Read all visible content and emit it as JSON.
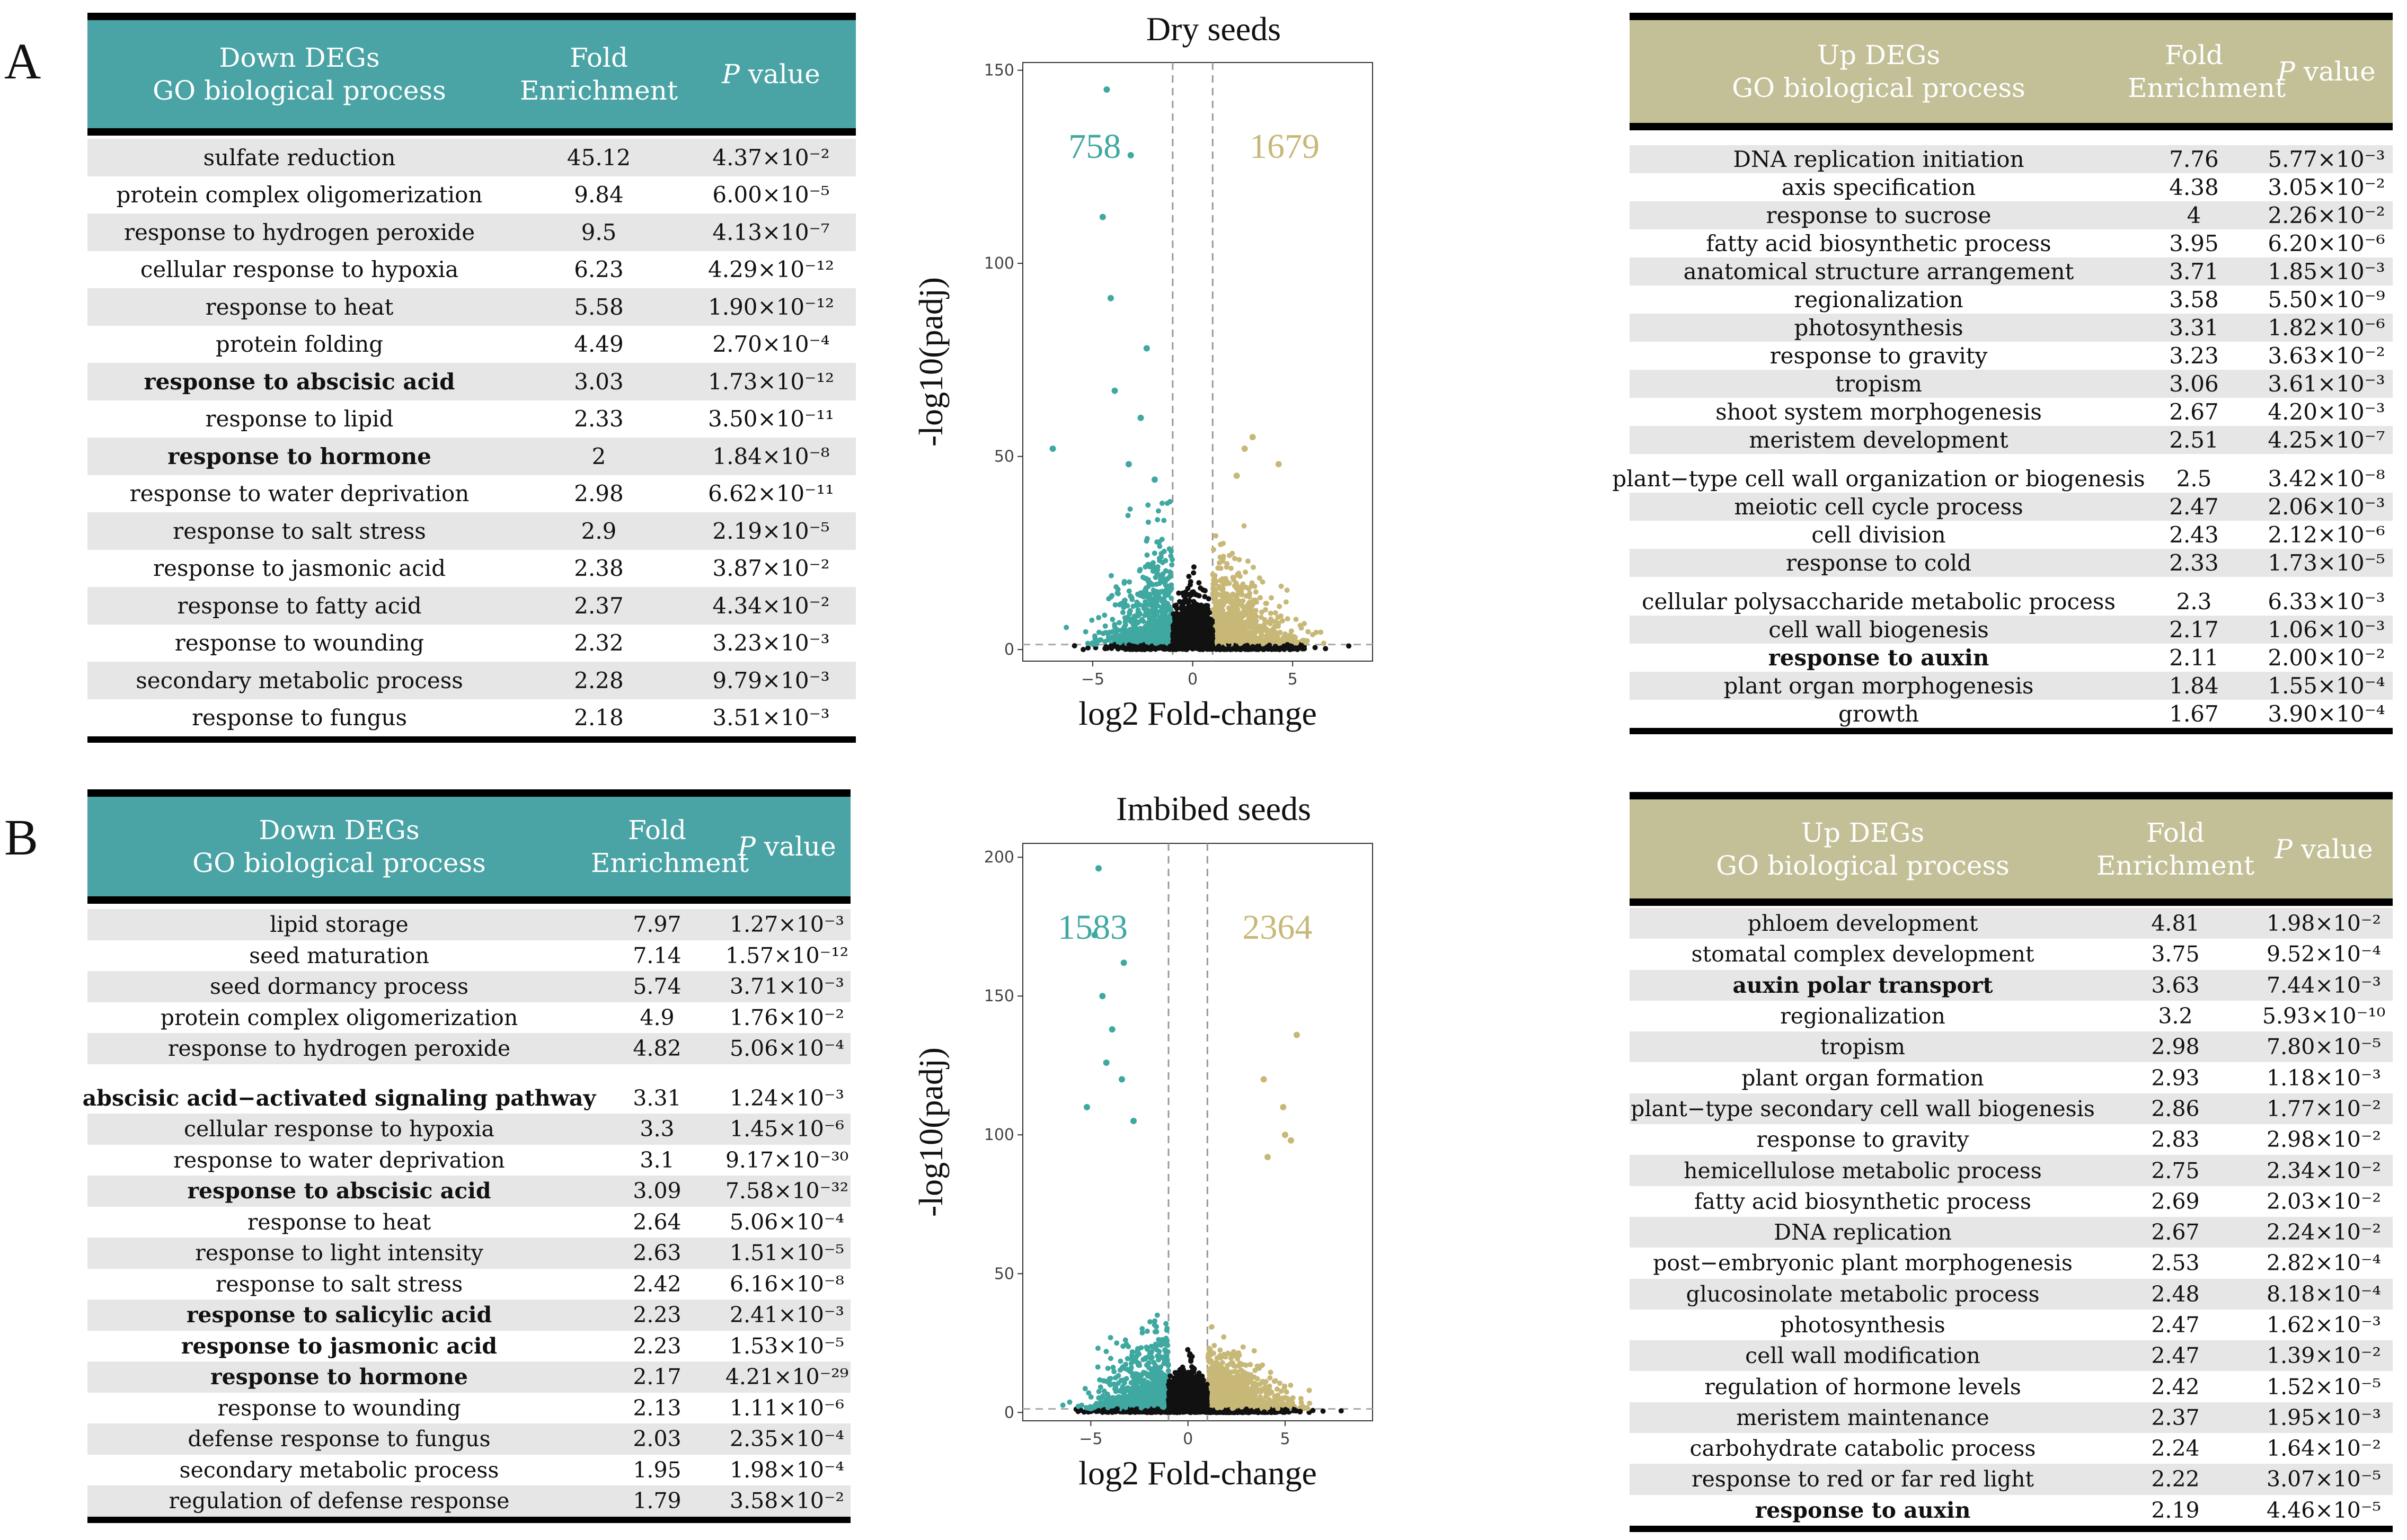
{
  "panels": {
    "A": {
      "letter": "A",
      "down": {
        "header": {
          "l1": "Down DEGs",
          "l2": "GO biological process",
          "fold1": "Fold",
          "fold2": "Enrichment",
          "p": "P",
          "pv": "value"
        },
        "rows": [
          {
            "term": "sulfate reduction",
            "fold": "45.12",
            "p": "4.37×10⁻²",
            "bold": false
          },
          {
            "term": "protein complex oligomerization",
            "fold": "9.84",
            "p": "6.00×10⁻⁵",
            "bold": false
          },
          {
            "term": "response to hydrogen peroxide",
            "fold": "9.5",
            "p": "4.13×10⁻⁷",
            "bold": false
          },
          {
            "term": "cellular response to hypoxia",
            "fold": "6.23",
            "p": "4.29×10⁻¹²",
            "bold": false
          },
          {
            "term": "response to heat",
            "fold": "5.58",
            "p": "1.90×10⁻¹²",
            "bold": false
          },
          {
            "term": "protein folding",
            "fold": "4.49",
            "p": "2.70×10⁻⁴",
            "bold": false
          },
          {
            "term": "response to abscisic acid",
            "fold": "3.03",
            "p": "1.73×10⁻¹²",
            "bold": true
          },
          {
            "term": "response to lipid",
            "fold": "2.33",
            "p": "3.50×10⁻¹¹",
            "bold": false
          },
          {
            "term": "response to hormone",
            "fold": "2",
            "p": "1.84×10⁻⁸",
            "bold": true
          },
          {
            "term": "response to water deprivation",
            "fold": "2.98",
            "p": "6.62×10⁻¹¹",
            "bold": false
          },
          {
            "term": "response to salt stress",
            "fold": "2.9",
            "p": "2.19×10⁻⁵",
            "bold": false
          },
          {
            "term": "response to jasmonic acid",
            "fold": "2.38",
            "p": "3.87×10⁻²",
            "bold": false
          },
          {
            "term": "response to fatty acid",
            "fold": "2.37",
            "p": "4.34×10⁻²",
            "bold": false
          },
          {
            "term": "response to wounding",
            "fold": "2.32",
            "p": "3.23×10⁻³",
            "bold": false
          },
          {
            "term": "secondary metabolic process",
            "fold": "2.28",
            "p": "9.79×10⁻³",
            "bold": false
          },
          {
            "term": "response to fungus",
            "fold": "2.18",
            "p": "3.51×10⁻³",
            "bold": false
          }
        ]
      },
      "up": {
        "header": {
          "l1": "Up DEGs",
          "l2": "GO biological process",
          "fold1": "Fold",
          "fold2": "Enrichment",
          "p": "P",
          "pv": "value"
        },
        "rows": [
          {
            "term": "DNA replication initiation",
            "fold": "7.76",
            "p": "5.77×10⁻³",
            "bold": false
          },
          {
            "term": "axis specification",
            "fold": "4.38",
            "p": "3.05×10⁻²",
            "bold": false
          },
          {
            "term": "response to sucrose",
            "fold": "4",
            "p": "2.26×10⁻²",
            "bold": false
          },
          {
            "term": "fatty acid biosynthetic process",
            "fold": "3.95",
            "p": "6.20×10⁻⁶",
            "bold": false
          },
          {
            "term": "anatomical structure arrangement",
            "fold": "3.71",
            "p": "1.85×10⁻³",
            "bold": false
          },
          {
            "term": "regionalization",
            "fold": "3.58",
            "p": "5.50×10⁻⁹",
            "bold": false
          },
          {
            "term": "photosynthesis",
            "fold": "3.31",
            "p": "1.82×10⁻⁶",
            "bold": false
          },
          {
            "term": "response to gravity",
            "fold": "3.23",
            "p": "3.63×10⁻²",
            "bold": false
          },
          {
            "term": "tropism",
            "fold": "3.06",
            "p": "3.61×10⁻³",
            "bold": false
          },
          {
            "term": "shoot system morphogenesis",
            "fold": "2.67",
            "p": "4.20×10⁻³",
            "bold": false
          },
          {
            "term": "meristem development",
            "fold": "2.51",
            "p": "4.25×10⁻⁷",
            "bold": false
          },
          {
            "term": "plant−type cell wall organization or biogenesis",
            "fold": "2.5",
            "p": "3.42×10⁻⁸",
            "bold": false
          },
          {
            "term": "meiotic cell cycle process",
            "fold": "2.47",
            "p": "2.06×10⁻³",
            "bold": false
          },
          {
            "term": "cell division",
            "fold": "2.43",
            "p": "2.12×10⁻⁶",
            "bold": false
          },
          {
            "term": "response to cold",
            "fold": "2.33",
            "p": "1.73×10⁻⁵",
            "bold": false
          },
          {
            "term": "cellular polysaccharide metabolic process",
            "fold": "2.3",
            "p": "6.33×10⁻³",
            "bold": false
          },
          {
            "term": "cell wall biogenesis",
            "fold": "2.17",
            "p": "1.06×10⁻³",
            "bold": false
          },
          {
            "term": "response to auxin",
            "fold": "2.11",
            "p": "2.00×10⁻²",
            "bold": true
          },
          {
            "term": "plant organ morphogenesis",
            "fold": "1.84",
            "p": "1.55×10⁻⁴",
            "bold": false
          },
          {
            "term": "growth",
            "fold": "1.67",
            "p": "3.90×10⁻⁴",
            "bold": false
          }
        ]
      },
      "plot": {
        "title": "Dry seeds",
        "down_count": "758",
        "up_count": "1679"
      }
    },
    "B": {
      "letter": "B",
      "down": {
        "header": {
          "l1": "Down DEGs",
          "l2": "GO biological process",
          "fold1": "Fold",
          "fold2": "Enrichment",
          "p": "P",
          "pv": "value"
        },
        "rows": [
          {
            "term": "lipid storage",
            "fold": "7.97",
            "p": "1.27×10⁻³",
            "bold": false
          },
          {
            "term": "seed maturation",
            "fold": "7.14",
            "p": "1.57×10⁻¹²",
            "bold": false
          },
          {
            "term": "seed dormancy process",
            "fold": "5.74",
            "p": "3.71×10⁻³",
            "bold": false
          },
          {
            "term": "protein complex oligomerization",
            "fold": "4.9",
            "p": "1.76×10⁻²",
            "bold": false
          },
          {
            "term": "response to hydrogen peroxide",
            "fold": "4.82",
            "p": "5.06×10⁻⁴",
            "bold": false
          },
          {
            "term": "abscisic acid−activated signaling pathway",
            "fold": "3.31",
            "p": "1.24×10⁻³",
            "bold": true
          },
          {
            "term": "cellular response to hypoxia",
            "fold": "3.3",
            "p": "1.45×10⁻⁶",
            "bold": false
          },
          {
            "term": "response to water deprivation",
            "fold": "3.1",
            "p": "9.17×10⁻³⁰",
            "bold": false
          },
          {
            "term": "response to abscisic acid",
            "fold": "3.09",
            "p": "7.58×10⁻³²",
            "bold": true
          },
          {
            "term": "response to heat",
            "fold": "2.64",
            "p": "5.06×10⁻⁴",
            "bold": false
          },
          {
            "term": "response to light intensity",
            "fold": "2.63",
            "p": "1.51×10⁻⁵",
            "bold": false
          },
          {
            "term": "response to salt stress",
            "fold": "2.42",
            "p": "6.16×10⁻⁸",
            "bold": false
          },
          {
            "term": "response to salicylic acid",
            "fold": "2.23",
            "p": "2.41×10⁻³",
            "bold": true
          },
          {
            "term": "response to jasmonic acid",
            "fold": "2.23",
            "p": "1.53×10⁻⁵",
            "bold": true
          },
          {
            "term": "response to hormone",
            "fold": "2.17",
            "p": "4.21×10⁻²⁹",
            "bold": true
          },
          {
            "term": "response to wounding",
            "fold": "2.13",
            "p": "1.11×10⁻⁶",
            "bold": false
          },
          {
            "term": "defense response to fungus",
            "fold": "2.03",
            "p": "2.35×10⁻⁴",
            "bold": false
          },
          {
            "term": "secondary metabolic process",
            "fold": "1.95",
            "p": "1.98×10⁻⁴",
            "bold": false
          },
          {
            "term": "regulation of defense response",
            "fold": "1.79",
            "p": "3.58×10⁻²",
            "bold": false
          }
        ]
      },
      "up": {
        "header": {
          "l1": "Up DEGs",
          "l2": "GO biological process",
          "fold1": "Fold",
          "fold2": "Enrichment",
          "p": "P",
          "pv": "value"
        },
        "rows": [
          {
            "term": "phloem development",
            "fold": "4.81",
            "p": "1.98×10⁻²",
            "bold": false
          },
          {
            "term": "stomatal complex development",
            "fold": "3.75",
            "p": "9.52×10⁻⁴",
            "bold": false
          },
          {
            "term": "auxin polar transport",
            "fold": "3.63",
            "p": "7.44×10⁻³",
            "bold": true
          },
          {
            "term": "regionalization",
            "fold": "3.2",
            "p": "5.93×10⁻¹⁰",
            "bold": false
          },
          {
            "term": "tropism",
            "fold": "2.98",
            "p": "7.80×10⁻⁵",
            "bold": false
          },
          {
            "term": "plant organ formation",
            "fold": "2.93",
            "p": "1.18×10⁻³",
            "bold": false
          },
          {
            "term": "plant−type secondary cell wall biogenesis",
            "fold": "2.86",
            "p": "1.77×10⁻²",
            "bold": false
          },
          {
            "term": "response to gravity",
            "fold": "2.83",
            "p": "2.98×10⁻²",
            "bold": false
          },
          {
            "term": "hemicellulose metabolic process",
            "fold": "2.75",
            "p": "2.34×10⁻²",
            "bold": false
          },
          {
            "term": "fatty acid biosynthetic process",
            "fold": "2.69",
            "p": "2.03×10⁻²",
            "bold": false
          },
          {
            "term": "DNA replication",
            "fold": "2.67",
            "p": "2.24×10⁻²",
            "bold": false
          },
          {
            "term": "post−embryonic plant morphogenesis",
            "fold": "2.53",
            "p": "2.82×10⁻⁴",
            "bold": false
          },
          {
            "term": "glucosinolate metabolic process",
            "fold": "2.48",
            "p": "8.18×10⁻⁴",
            "bold": false
          },
          {
            "term": "photosynthesis",
            "fold": "2.47",
            "p": "1.62×10⁻³",
            "bold": false
          },
          {
            "term": "cell wall modification",
            "fold": "2.47",
            "p": "1.39×10⁻²",
            "bold": false
          },
          {
            "term": "regulation of hormone levels",
            "fold": "2.42",
            "p": "1.52×10⁻⁵",
            "bold": false
          },
          {
            "term": "meristem maintenance",
            "fold": "2.37",
            "p": "1.95×10⁻³",
            "bold": false
          },
          {
            "term": "carbohydrate catabolic process",
            "fold": "2.24",
            "p": "1.64×10⁻²",
            "bold": false
          },
          {
            "term": "response to red or far red light",
            "fold": "2.22",
            "p": "3.07×10⁻⁵",
            "bold": false
          },
          {
            "term": "response to auxin",
            "fold": "2.19",
            "p": "4.46×10⁻⁵",
            "bold": true
          }
        ]
      },
      "plot": {
        "title": "Imbibed seeds",
        "down_count": "1583",
        "up_count": "2364"
      }
    }
  },
  "colors": {
    "teal": "#4aa3a5",
    "olive": "#c3c097",
    "down_points": "#3fa8a0",
    "up_points": "#c8b878",
    "ns_points": "#111111",
    "stripe": "#e6e6e6"
  },
  "chart_data": [
    {
      "type": "scatter",
      "title": "Dry seeds",
      "xlabel": "log2 Fold-change",
      "ylabel": "-log10(padj)",
      "xlim": [
        -8.5,
        9
      ],
      "ylim": [
        -3,
        152
      ],
      "xticks": [
        -5,
        0,
        5
      ],
      "yticks": [
        0,
        50,
        100,
        150
      ],
      "vlines": [
        -1,
        1
      ],
      "hline": 1.3,
      "annotations": {
        "down": "758",
        "up": "1679"
      },
      "series": [
        {
          "name": "Down",
          "color": "#3fa8a0",
          "points": [
            [
              -4.3,
              145
            ],
            [
              -3.1,
              128
            ],
            [
              -4.5,
              112
            ],
            [
              -4.1,
              91
            ],
            [
              -2.3,
              78
            ],
            [
              -3.9,
              67
            ],
            [
              -7,
              52
            ],
            [
              -2.6,
              60
            ],
            [
              -3.2,
              48
            ],
            [
              -1.9,
              44
            ]
          ]
        },
        {
          "name": "Up",
          "color": "#c8b878",
          "points": [
            [
              3.0,
              55
            ],
            [
              2.6,
              52
            ],
            [
              4.3,
              48
            ],
            [
              2.2,
              45
            ]
          ]
        }
      ]
    },
    {
      "type": "scatter",
      "title": "Imbibed seeds",
      "xlabel": "log2 Fold-change",
      "ylabel": "-log10(padj)",
      "xlim": [
        -8.5,
        9.5
      ],
      "ylim": [
        -3,
        205
      ],
      "xticks": [
        -5,
        0,
        5
      ],
      "yticks": [
        0,
        50,
        100,
        150,
        200
      ],
      "vlines": [
        -1,
        1
      ],
      "hline": 1.3,
      "annotations": {
        "down": "1583",
        "up": "2364"
      },
      "series": [
        {
          "name": "Down",
          "color": "#3fa8a0",
          "points": [
            [
              -4.6,
              196
            ],
            [
              -4.8,
              172
            ],
            [
              -3.3,
              162
            ],
            [
              -4.4,
              150
            ],
            [
              -3.9,
              138
            ],
            [
              -4.2,
              126
            ],
            [
              -3.4,
              120
            ],
            [
              -5.2,
              110
            ],
            [
              -2.8,
              105
            ]
          ]
        },
        {
          "name": "Up",
          "color": "#c8b878",
          "points": [
            [
              5.6,
              136
            ],
            [
              4.9,
              110
            ],
            [
              5.0,
              100
            ],
            [
              3.9,
              120
            ],
            [
              5.3,
              98
            ],
            [
              4.1,
              92
            ]
          ]
        }
      ]
    }
  ]
}
